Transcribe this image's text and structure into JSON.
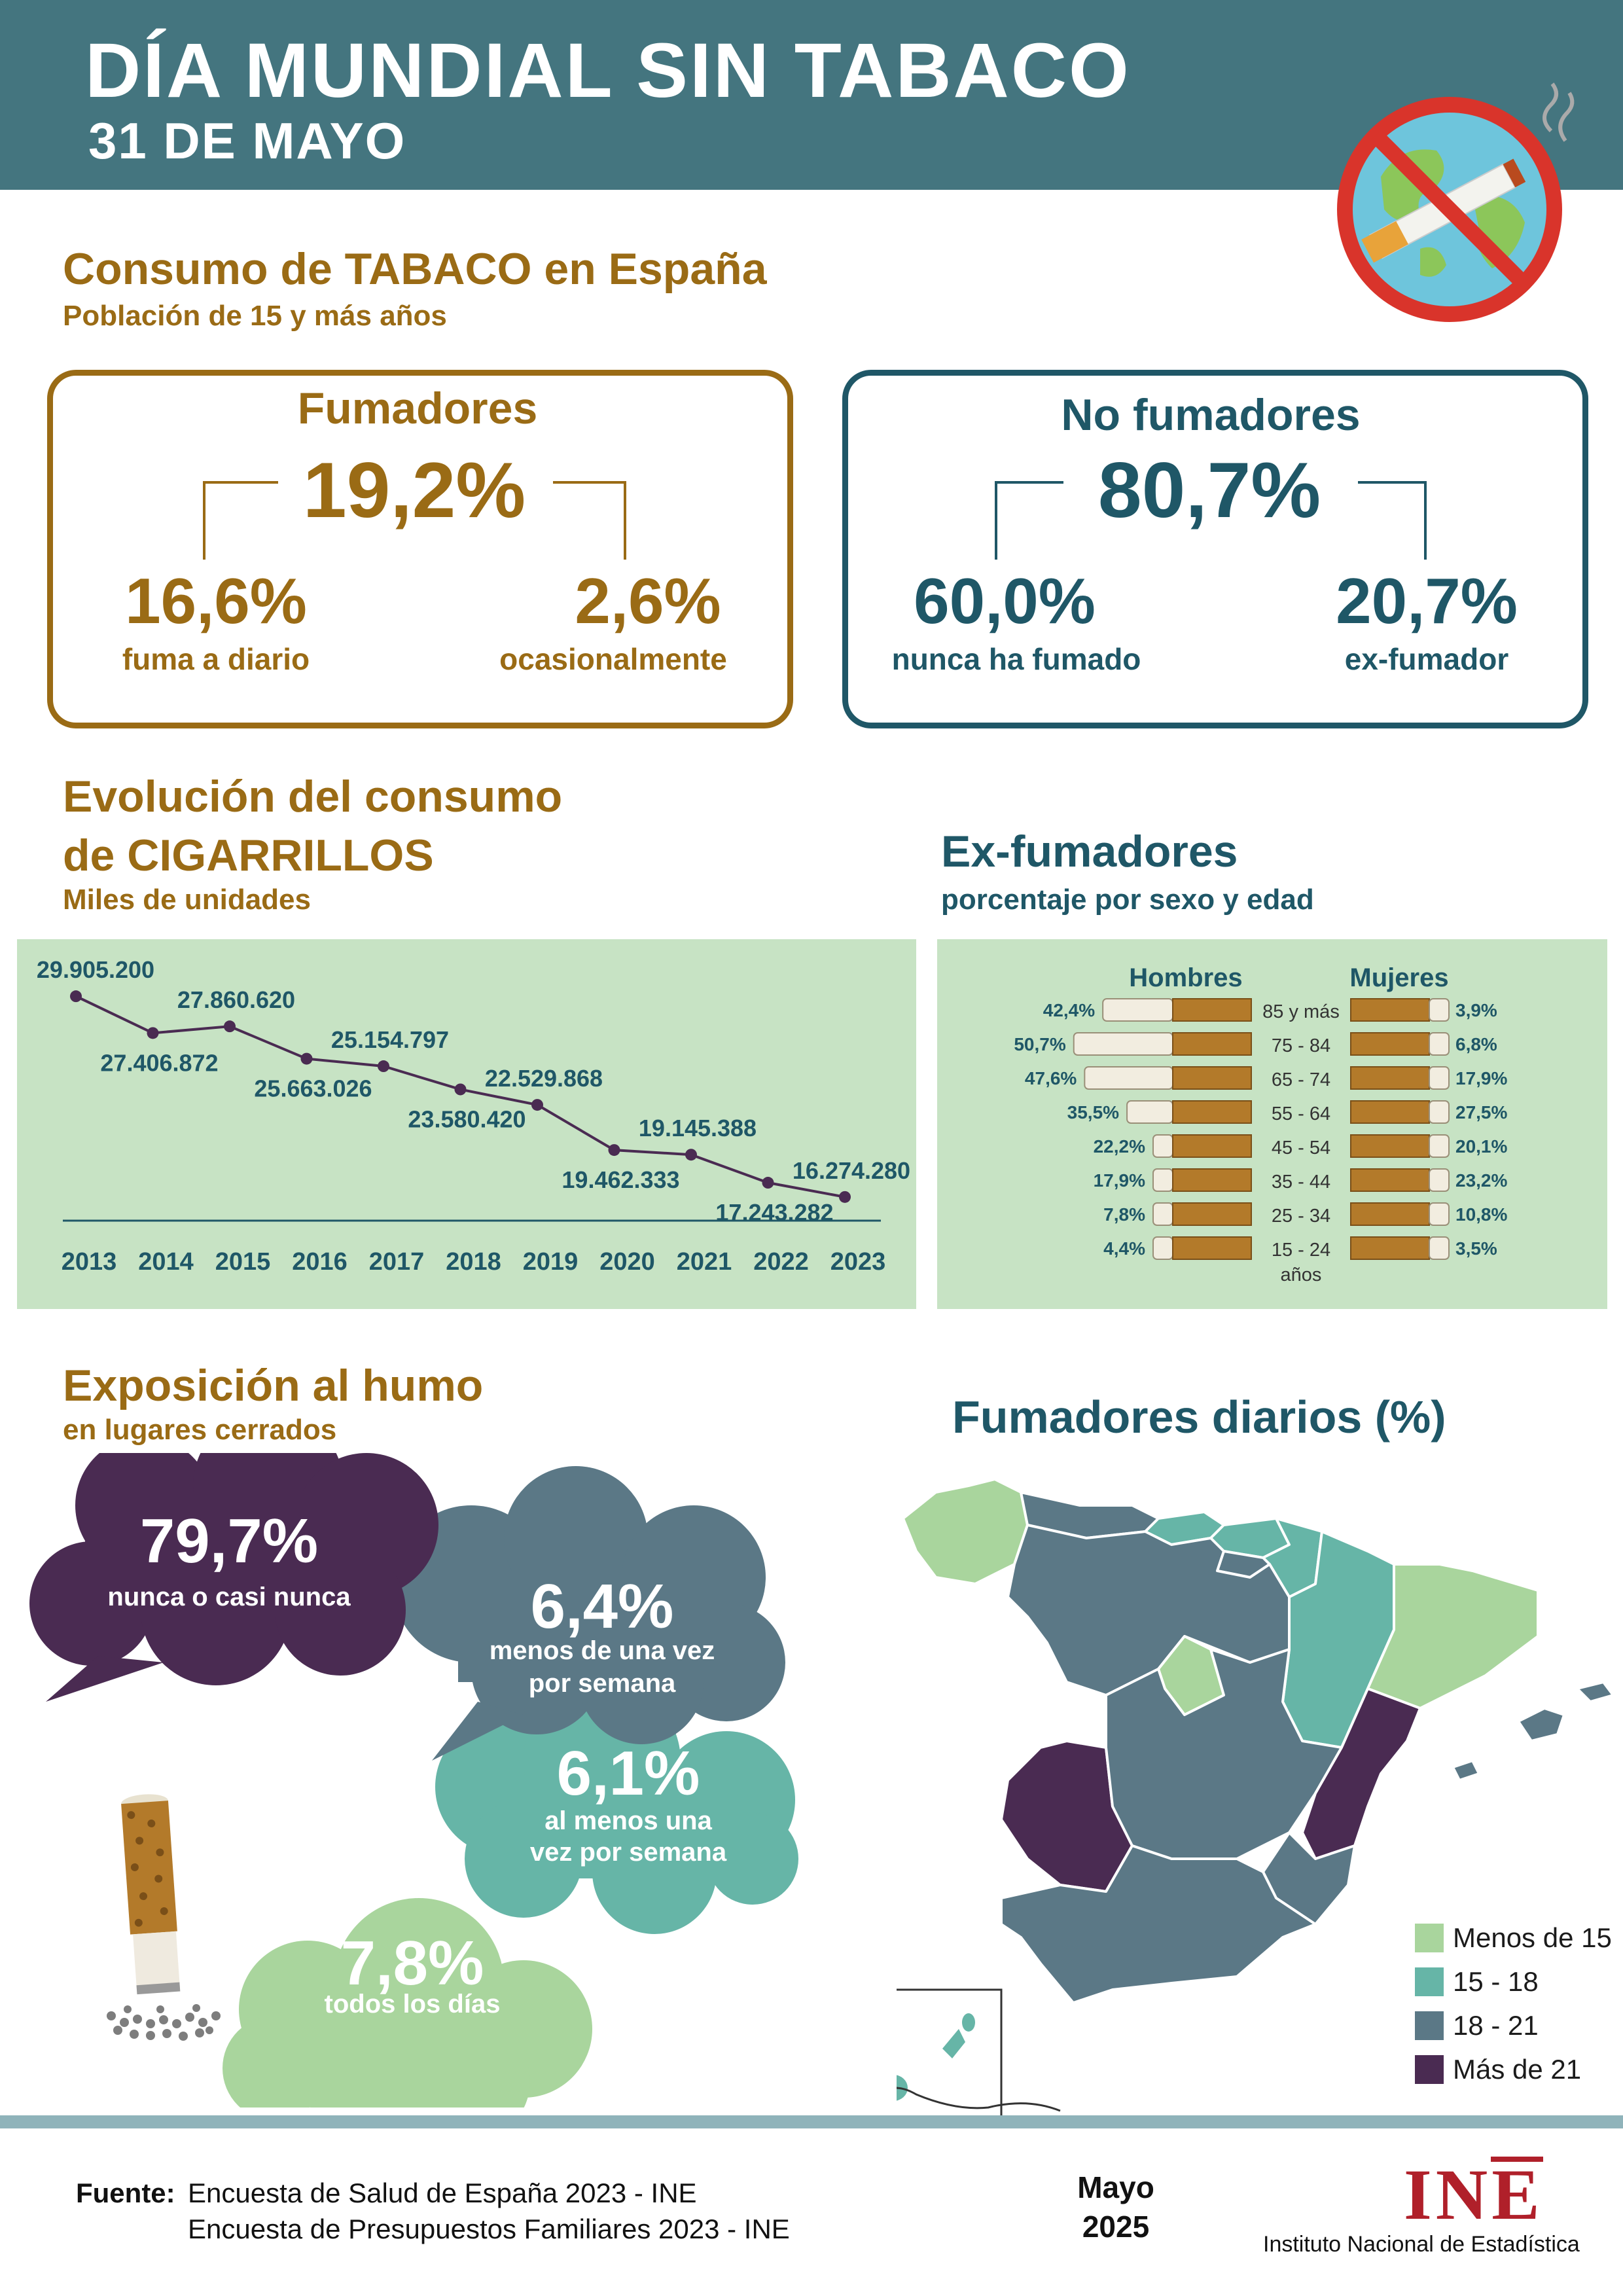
{
  "header": {
    "title": "DÍA MUNDIAL SIN TABACO",
    "date": "31 DE MAYO"
  },
  "consumo": {
    "title": "Consumo de TABACO en España",
    "subtitle": "Población de 15 y más años",
    "fumadores": {
      "label": "Fumadores",
      "total": "19,2%",
      "diario_pct": "16,6%",
      "diario_lbl": "fuma a diario",
      "ocasional_pct": "2,6%",
      "ocasional_lbl": "ocasionalmente"
    },
    "no_fumadores": {
      "label": "No fumadores",
      "total": "80,7%",
      "nunca_pct": "60,0%",
      "nunca_lbl": "nunca ha fumado",
      "ex_pct": "20,7%",
      "ex_lbl": "ex-fumador"
    }
  },
  "evolucion": {
    "title1": "Evolución del consumo",
    "title2": "de CIGARRILLOS",
    "subtitle": "Miles de unidades"
  },
  "exfumadores": {
    "title": "Ex-fumadores",
    "subtitle": "porcentaje por sexo y edad",
    "hombres": "Hombres",
    "mujeres": "Mujeres",
    "anos": "años"
  },
  "exposicion": {
    "title": "Exposición al humo",
    "subtitle": "en lugares cerrados",
    "c1_pct": "79,7%",
    "c1_lbl": "nunca o casi nunca",
    "c2_pct": "6,4%",
    "c2_lbl1": "menos de una vez",
    "c2_lbl2": "por semana",
    "c3_pct": "6,1%",
    "c3_lbl1": "al menos una",
    "c3_lbl2": "vez por semana",
    "c4_pct": "7,8%",
    "c4_lbl": "todos los días",
    "colors": {
      "c1": "#4a2b52",
      "c2": "#5b7886",
      "c3": "#66b5a7",
      "c4": "#a9d59d"
    }
  },
  "mapa": {
    "title": "Fumadores diarios (%)",
    "legend": [
      {
        "label": "Menos de 15",
        "color": "#a9d59d"
      },
      {
        "label": "15 - 18",
        "color": "#66b5a7"
      },
      {
        "label": "18 - 21",
        "color": "#5b7886"
      },
      {
        "label": "Más de 21",
        "color": "#4a2b52"
      }
    ]
  },
  "footer": {
    "fuente": "Fuente:",
    "src1": "Encuesta de Salud de España 2023 - INE",
    "src2": "Encuesta de Presupuestos Familiares 2023 - INE",
    "month": "Mayo",
    "year": "2025",
    "logo": "INE",
    "org": "Instituto Nacional de Estadística"
  },
  "chart_data": [
    {
      "type": "line",
      "title": "Evolución del consumo de CIGARRILLOS",
      "subtitle": "Miles de unidades",
      "x": [
        "2013",
        "2014",
        "2015",
        "2016",
        "2017",
        "2018",
        "2019",
        "2020",
        "2021",
        "2022",
        "2023"
      ],
      "values": [
        29905200,
        27406872,
        27860620,
        25663026,
        25154797,
        23580420,
        22529868,
        19462333,
        19145388,
        17243282,
        16274280
      ],
      "labels": [
        "29.905.200",
        "27.406.872",
        "27.860.620",
        "25.663.026",
        "25.154.797",
        "23.580.420",
        "22.529.868",
        "19.462.333",
        "19.145.388",
        "17.243.282",
        "16.274.280"
      ]
    },
    {
      "type": "bar",
      "title": "Ex-fumadores",
      "subtitle": "porcentaje por sexo y edad",
      "categories": [
        "85 y más",
        "75 - 84",
        "65 - 74",
        "55 - 64",
        "45 - 54",
        "35 - 44",
        "25 - 34",
        "15 - 24"
      ],
      "series": [
        {
          "name": "Hombres",
          "values": [
            42.4,
            50.7,
            47.6,
            35.5,
            22.2,
            17.9,
            7.8,
            4.4
          ],
          "labels": [
            "42,4%",
            "50,7%",
            "47,6%",
            "35,5%",
            "22,2%",
            "17,9%",
            "7,8%",
            "4,4%"
          ]
        },
        {
          "name": "Mujeres",
          "values": [
            3.9,
            6.8,
            17.9,
            27.5,
            20.1,
            23.2,
            10.8,
            3.5
          ],
          "labels": [
            "3,9%",
            "6,8%",
            "17,9%",
            "27,5%",
            "20,1%",
            "23,2%",
            "10,8%",
            "3,5%"
          ]
        }
      ]
    }
  ]
}
